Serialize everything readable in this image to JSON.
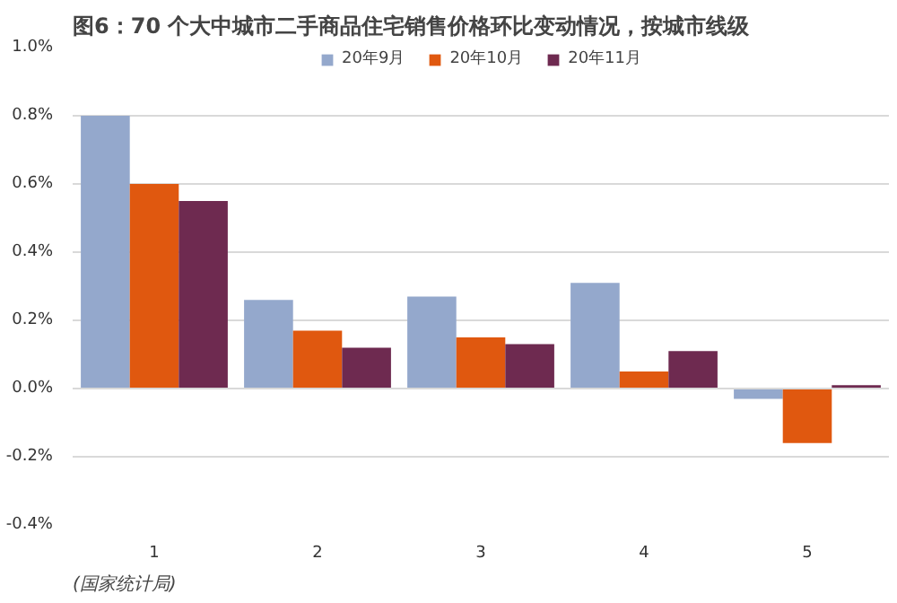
{
  "chart_data": {
    "type": "bar",
    "title": "图6：70 个大中城市二手商品住宅销售价格环比变动情况，按城市线级",
    "categories": [
      "1",
      "2",
      "3",
      "4",
      "5"
    ],
    "series": [
      {
        "name": "20年9月",
        "color": "#94a8cc",
        "values": [
          0.8,
          0.26,
          0.27,
          0.31,
          -0.03
        ]
      },
      {
        "name": "20年10月",
        "color": "#e0580f",
        "values": [
          0.6,
          0.17,
          0.15,
          0.05,
          -0.16
        ]
      },
      {
        "name": "20年11月",
        "color": "#6e2a50",
        "values": [
          0.55,
          0.12,
          0.13,
          0.11,
          0.01
        ]
      }
    ],
    "ylim": [
      -0.4,
      1.0
    ],
    "yticks": [
      {
        "value": -0.4,
        "label": "-0.4%"
      },
      {
        "value": -0.2,
        "label": "-0.2%"
      },
      {
        "value": 0.0,
        "label": "0.0%"
      },
      {
        "value": 0.2,
        "label": "0.2%"
      },
      {
        "value": 0.4,
        "label": "0.4%"
      },
      {
        "value": 0.6,
        "label": "0.6%"
      },
      {
        "value": 0.8,
        "label": "0.8%"
      },
      {
        "value": 1.0,
        "label": "1.0%"
      }
    ],
    "grid": "y",
    "legend": "top",
    "annotations": [
      "(国家统计局)"
    ]
  }
}
